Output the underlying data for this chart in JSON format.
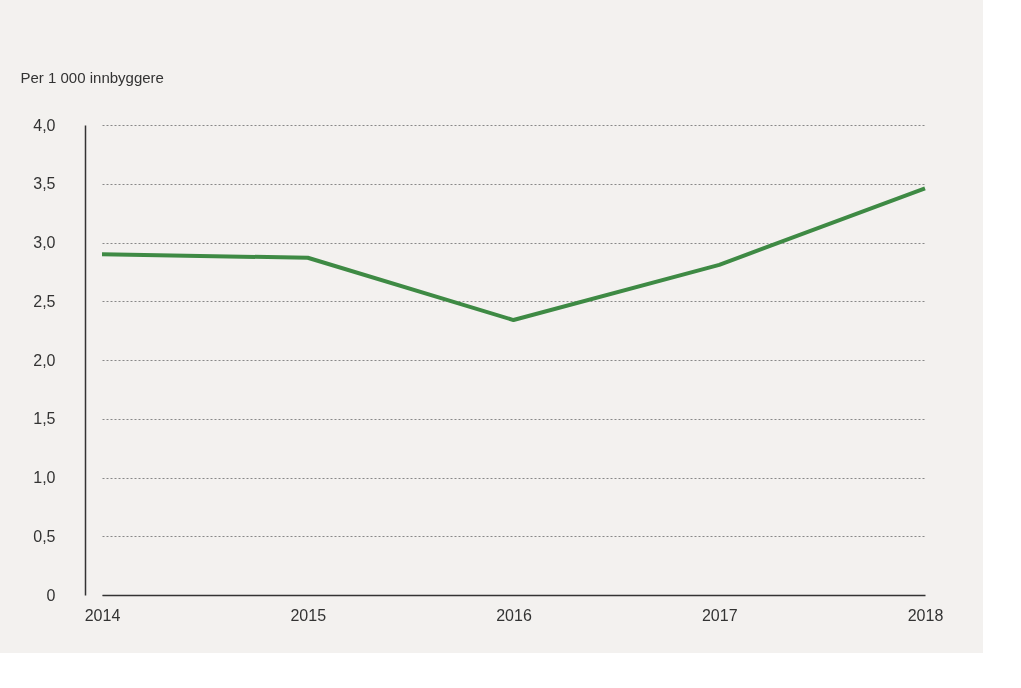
{
  "chart_data": {
    "type": "line",
    "ylabel": "Per 1 000 innbyggere",
    "categories": [
      "2014",
      "2015",
      "2016",
      "2017",
      "2018"
    ],
    "series": [
      {
        "color": "#3e8a44",
        "values": [
          2.9,
          2.87,
          2.34,
          2.81,
          3.46
        ]
      }
    ],
    "ylim": [
      0,
      4
    ],
    "yticks": [
      0,
      {
        "value": 0.5,
        "label": "0,5"
      },
      {
        "value": 1,
        "label": "1,0"
      },
      {
        "value": 1.5,
        "label": "1,5"
      },
      {
        "value": 2,
        "label": "2,0"
      },
      {
        "value": 2.5,
        "label": "2,5"
      },
      {
        "value": 3,
        "label": "3,0"
      },
      {
        "value": 3.5,
        "label": "3,5"
      },
      {
        "value": 4,
        "label": "4,0"
      }
    ],
    "grid": "y",
    "legend": false,
    "marker": "none",
    "line_style": "solid"
  }
}
